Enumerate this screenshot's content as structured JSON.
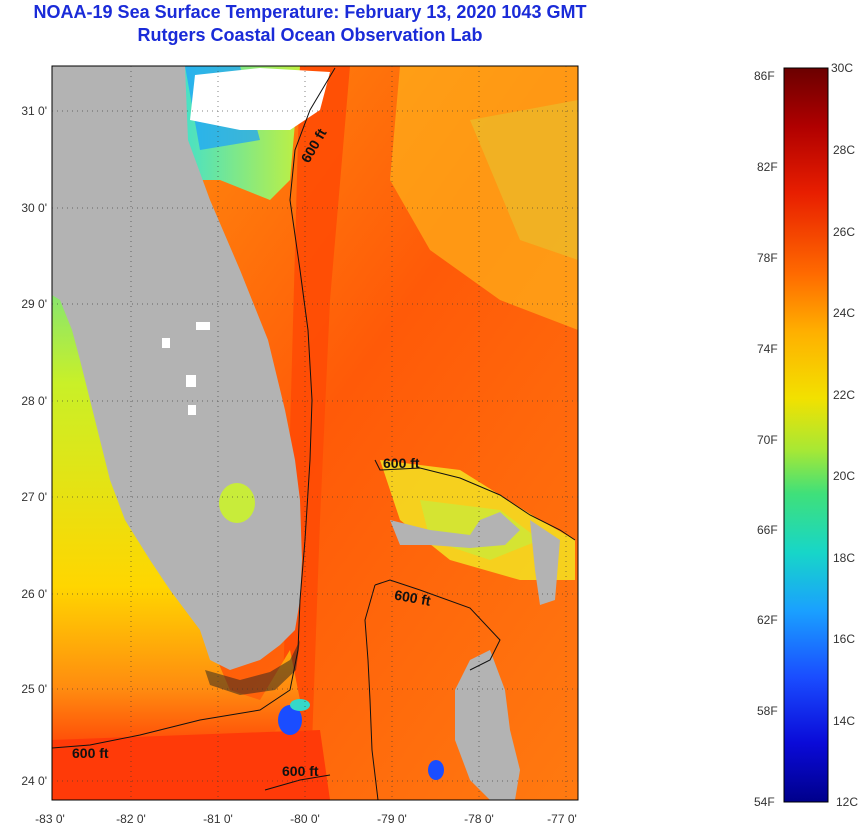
{
  "header": {
    "title": "NOAA-19 Sea Surface Temperature:  February 13, 2020 1043 GMT",
    "subtitle": "Rutgers Coastal Ocean Observation Lab"
  },
  "map": {
    "lon_ticks": [
      "-83 0'",
      "-82 0'",
      "-81 0'",
      "-80 0'",
      "-79 0'",
      "-78 0'",
      "-77 0'"
    ],
    "lat_ticks": [
      "31 0'",
      "30 0'",
      "29 0'",
      "28 0'",
      "27 0'",
      "26 0'",
      "25 0'",
      "24 0'"
    ],
    "contour_label": "600 ft",
    "colors": {
      "land": "#b3b3b3",
      "cloud": "#ffffff",
      "contour": "#111111"
    }
  },
  "colorbar": {
    "top_f": "86F",
    "bottom_f": "54F",
    "top_c": "30C",
    "bottom_c": "12C",
    "f_labels": [
      "82F",
      "78F",
      "74F",
      "70F",
      "66F",
      "62F",
      "58F"
    ],
    "c_labels": [
      "28C",
      "26C",
      "24C",
      "22C",
      "20C",
      "18C",
      "16C",
      "14C"
    ],
    "stops": [
      "#6b0000",
      "#b00000",
      "#e81e00",
      "#ff6a00",
      "#ffb000",
      "#f2e100",
      "#a8e834",
      "#3fe07a",
      "#17d6c8",
      "#1aa0ff",
      "#1a4dff",
      "#0a0ad8",
      "#00008b"
    ]
  }
}
